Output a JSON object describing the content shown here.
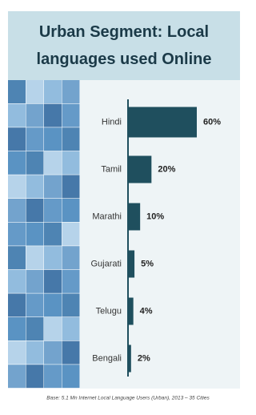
{
  "chart_data": {
    "type": "hbar",
    "title": "Urban Segment: Local languages used Online",
    "categories": [
      "Hindi",
      "Tamil",
      "Marathi",
      "Gujarati",
      "Telugu",
      "Bengali"
    ],
    "values": [
      60,
      20,
      10,
      5,
      4,
      2
    ],
    "value_labels": [
      "60%",
      "20%",
      "10%",
      "5%",
      "4%",
      "2%"
    ],
    "color": "#1f4f5e",
    "footnote": "Base: 5.1 Mn Internet Local Language Users (Urban), 2013 – 35 Cities"
  }
}
